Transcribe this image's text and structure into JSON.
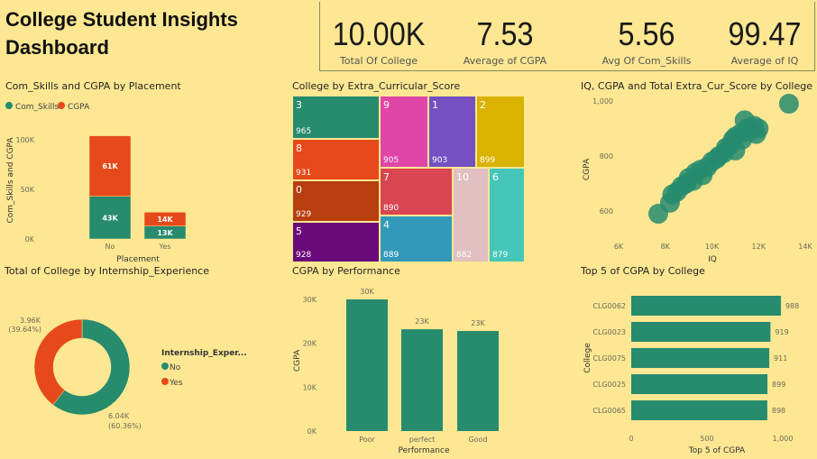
{
  "header": {
    "title_line1": "College Student Insights",
    "title_line2": "Dashboard"
  },
  "kpis": [
    {
      "value": "10.00K",
      "label": "Total Of College"
    },
    {
      "value": "7.53",
      "label": "Average of CGPA"
    },
    {
      "value": "5.56",
      "label": "Avg Of Com_Skills"
    },
    {
      "value": "99.47",
      "label": "Average of IQ"
    }
  ],
  "colors": {
    "background": "#fde792",
    "green": "#278b6e",
    "orange": "#e6491a"
  },
  "chart_data": [
    {
      "id": "placement",
      "type": "bar",
      "stacked": true,
      "title": "Com_Skills and  CGPA by Placement",
      "xlabel": "Placement",
      "ylabel": "Com_Skills and CGPA",
      "categories": [
        "No",
        "Yes"
      ],
      "yticks": [
        "0K",
        "50K",
        "100K"
      ],
      "ylim": [
        0,
        100000
      ],
      "legend": "top-left",
      "series": [
        {
          "name": "Com_Skills",
          "color": "#278b6e",
          "values": [
            43000,
            13000
          ],
          "labels": [
            "43K",
            "13K"
          ]
        },
        {
          "name": "CGPA",
          "color": "#e6491a",
          "values": [
            61000,
            14000
          ],
          "labels": [
            "61K",
            "14K"
          ]
        }
      ]
    },
    {
      "id": "treemap",
      "type": "treemap",
      "title": "College by Extra_Curricular_Score",
      "items": [
        {
          "name": "3",
          "value": 965,
          "color": "#278b6e"
        },
        {
          "name": "8",
          "value": 931,
          "color": "#e6491a"
        },
        {
          "name": "0",
          "value": 929,
          "color": "#b73e0f"
        },
        {
          "name": "5",
          "value": 928,
          "color": "#6a0a7a"
        },
        {
          "name": "9",
          "value": 905,
          "color": "#e045a8"
        },
        {
          "name": "1",
          "value": 903,
          "color": "#7450c0"
        },
        {
          "name": "2",
          "value": 899,
          "color": "#d9b300"
        },
        {
          "name": "7",
          "value": 890,
          "color": "#d94652"
        },
        {
          "name": "4",
          "value": 889,
          "color": "#3399bb"
        },
        {
          "name": "10",
          "value": 882,
          "color": "#e0c0c0"
        },
        {
          "name": "6",
          "value": 879,
          "color": "#45c6b8"
        }
      ]
    },
    {
      "id": "scatter",
      "type": "scatter",
      "title": "IQ, CGPA and Total Extra_Cur_Score by College",
      "xlabel": "IQ",
      "ylabel": "CGPA",
      "xticks": [
        "6K",
        "8K",
        "10K",
        "12K",
        "14K"
      ],
      "xlim": [
        6000,
        14000
      ],
      "yticks": [
        "600",
        "800",
        "1,000"
      ],
      "ylim": [
        600,
        1000
      ],
      "color": "#278b6e",
      "points": [
        [
          7700,
          590
        ],
        [
          8200,
          630
        ],
        [
          8300,
          660
        ],
        [
          8500,
          670
        ],
        [
          8700,
          690
        ],
        [
          8900,
          700
        ],
        [
          9000,
          720
        ],
        [
          9200,
          710
        ],
        [
          9300,
          740
        ],
        [
          9500,
          750
        ],
        [
          9600,
          730
        ],
        [
          9800,
          760
        ],
        [
          10000,
          780
        ],
        [
          10200,
          790
        ],
        [
          10300,
          800
        ],
        [
          10500,
          810
        ],
        [
          10600,
          830
        ],
        [
          10800,
          840
        ],
        [
          10900,
          860
        ],
        [
          11000,
          870
        ],
        [
          11200,
          880
        ],
        [
          11300,
          860
        ],
        [
          11500,
          900
        ],
        [
          11600,
          890
        ],
        [
          11800,
          910
        ],
        [
          11900,
          880
        ],
        [
          12000,
          900
        ],
        [
          11400,
          930
        ],
        [
          11000,
          820
        ],
        [
          13300,
          990
        ]
      ]
    },
    {
      "id": "internship",
      "type": "pie",
      "donut": true,
      "title": "Total of College by Internship_Experience",
      "legend_title": "Internship_Exper...",
      "legend": "right",
      "slices": [
        {
          "name": "No",
          "value": 6040,
          "label": "6.04K",
          "pct": "(60.36%)",
          "color": "#278b6e"
        },
        {
          "name": "Yes",
          "value": 3960,
          "label": "3.96K",
          "pct": "(39.64%)",
          "color": "#e6491a"
        }
      ]
    },
    {
      "id": "performance",
      "type": "bar",
      "title": "CGPA by Performance",
      "xlabel": "Performance",
      "ylabel": "CGPA",
      "categories": [
        "Poor",
        "perfect",
        "Good"
      ],
      "values": [
        30000,
        23200,
        22800
      ],
      "labels": [
        "30K",
        "23K",
        "23K"
      ],
      "yticks": [
        "0K",
        "10K",
        "20K",
        "30K"
      ],
      "ylim": [
        0,
        30000
      ],
      "color": "#278b6e"
    },
    {
      "id": "top5",
      "type": "bar",
      "orientation": "horizontal",
      "title": "Top 5 of CGPA by College",
      "xlabel": "Top 5 of CGPA",
      "ylabel": "College",
      "categories": [
        "CLG0062",
        "CLG0023",
        "CLG0075",
        "CLG0025",
        "CLG0065"
      ],
      "values": [
        988,
        919,
        911,
        899,
        898
      ],
      "xticks": [
        "0",
        "500",
        "1,000"
      ],
      "xlim": [
        0,
        1000
      ],
      "color": "#278b6e"
    }
  ]
}
